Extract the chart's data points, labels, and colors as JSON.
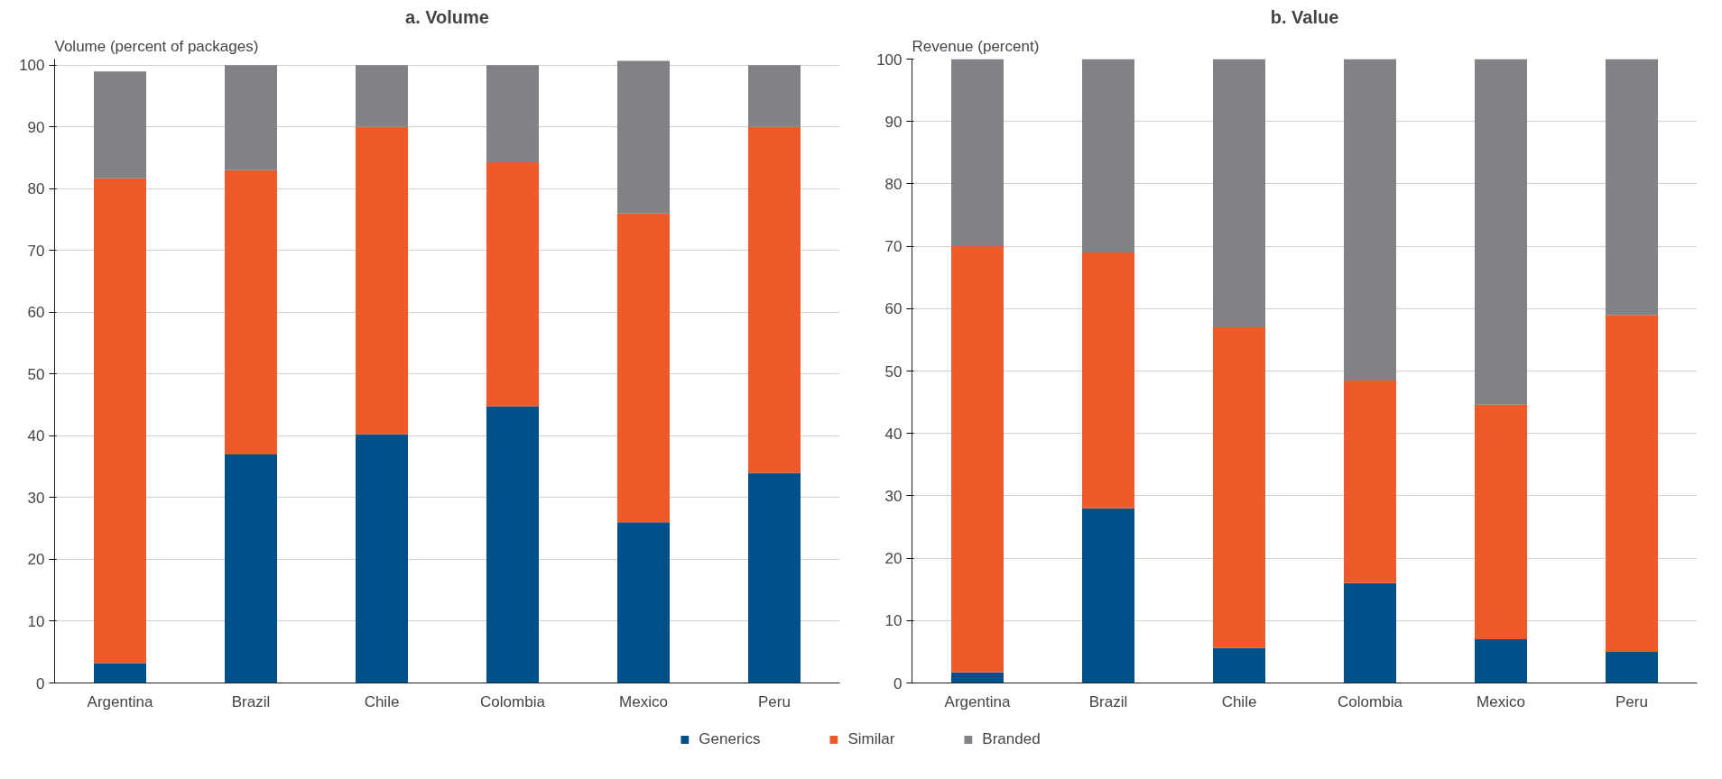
{
  "chart_data": [
    {
      "type": "bar",
      "title": "a. Volume",
      "ylabel": "Volume (percent of packages)",
      "stacked": true,
      "categories": [
        "Argentina",
        "Brazil",
        "Chile",
        "Colombia",
        "Mexico",
        "Peru"
      ],
      "ylim": [
        0,
        101
      ],
      "yticks": [
        0,
        10,
        20,
        30,
        40,
        50,
        60,
        70,
        80,
        90,
        100
      ],
      "grid": "y",
      "legend": "bottom",
      "series": [
        {
          "name": "Generics",
          "color": "#00508a",
          "values": [
            3.2,
            37,
            40.3,
            44.8,
            26,
            34
          ]
        },
        {
          "name": "Similar",
          "color": "#f05a28",
          "values": [
            78.5,
            46,
            49.7,
            39.5,
            50,
            56
          ]
        },
        {
          "name": "Branded",
          "color": "#808285",
          "values": [
            17.3,
            17,
            10,
            15.7,
            24.7,
            10
          ]
        }
      ]
    },
    {
      "type": "bar",
      "title": "b. Value",
      "ylabel": "Revenue (percent)",
      "stacked": true,
      "categories": [
        "Argentina",
        "Brazil",
        "Chile",
        "Colombia",
        "Mexico",
        "Peru"
      ],
      "ylim": [
        0,
        100
      ],
      "yticks": [
        0,
        10,
        20,
        30,
        40,
        50,
        60,
        70,
        80,
        90,
        100
      ],
      "grid": "y",
      "series": [
        {
          "color": "#00508a",
          "values": [
            1.7,
            28,
            5.6,
            16,
            7,
            5
          ]
        },
        {
          "color": "#f05a28",
          "values": [
            68.3,
            41,
            51.4,
            32.5,
            37.6,
            54
          ]
        },
        {
          "color": "#808285",
          "values": [
            30,
            31,
            43,
            51.5,
            55.4,
            41
          ]
        }
      ]
    }
  ]
}
